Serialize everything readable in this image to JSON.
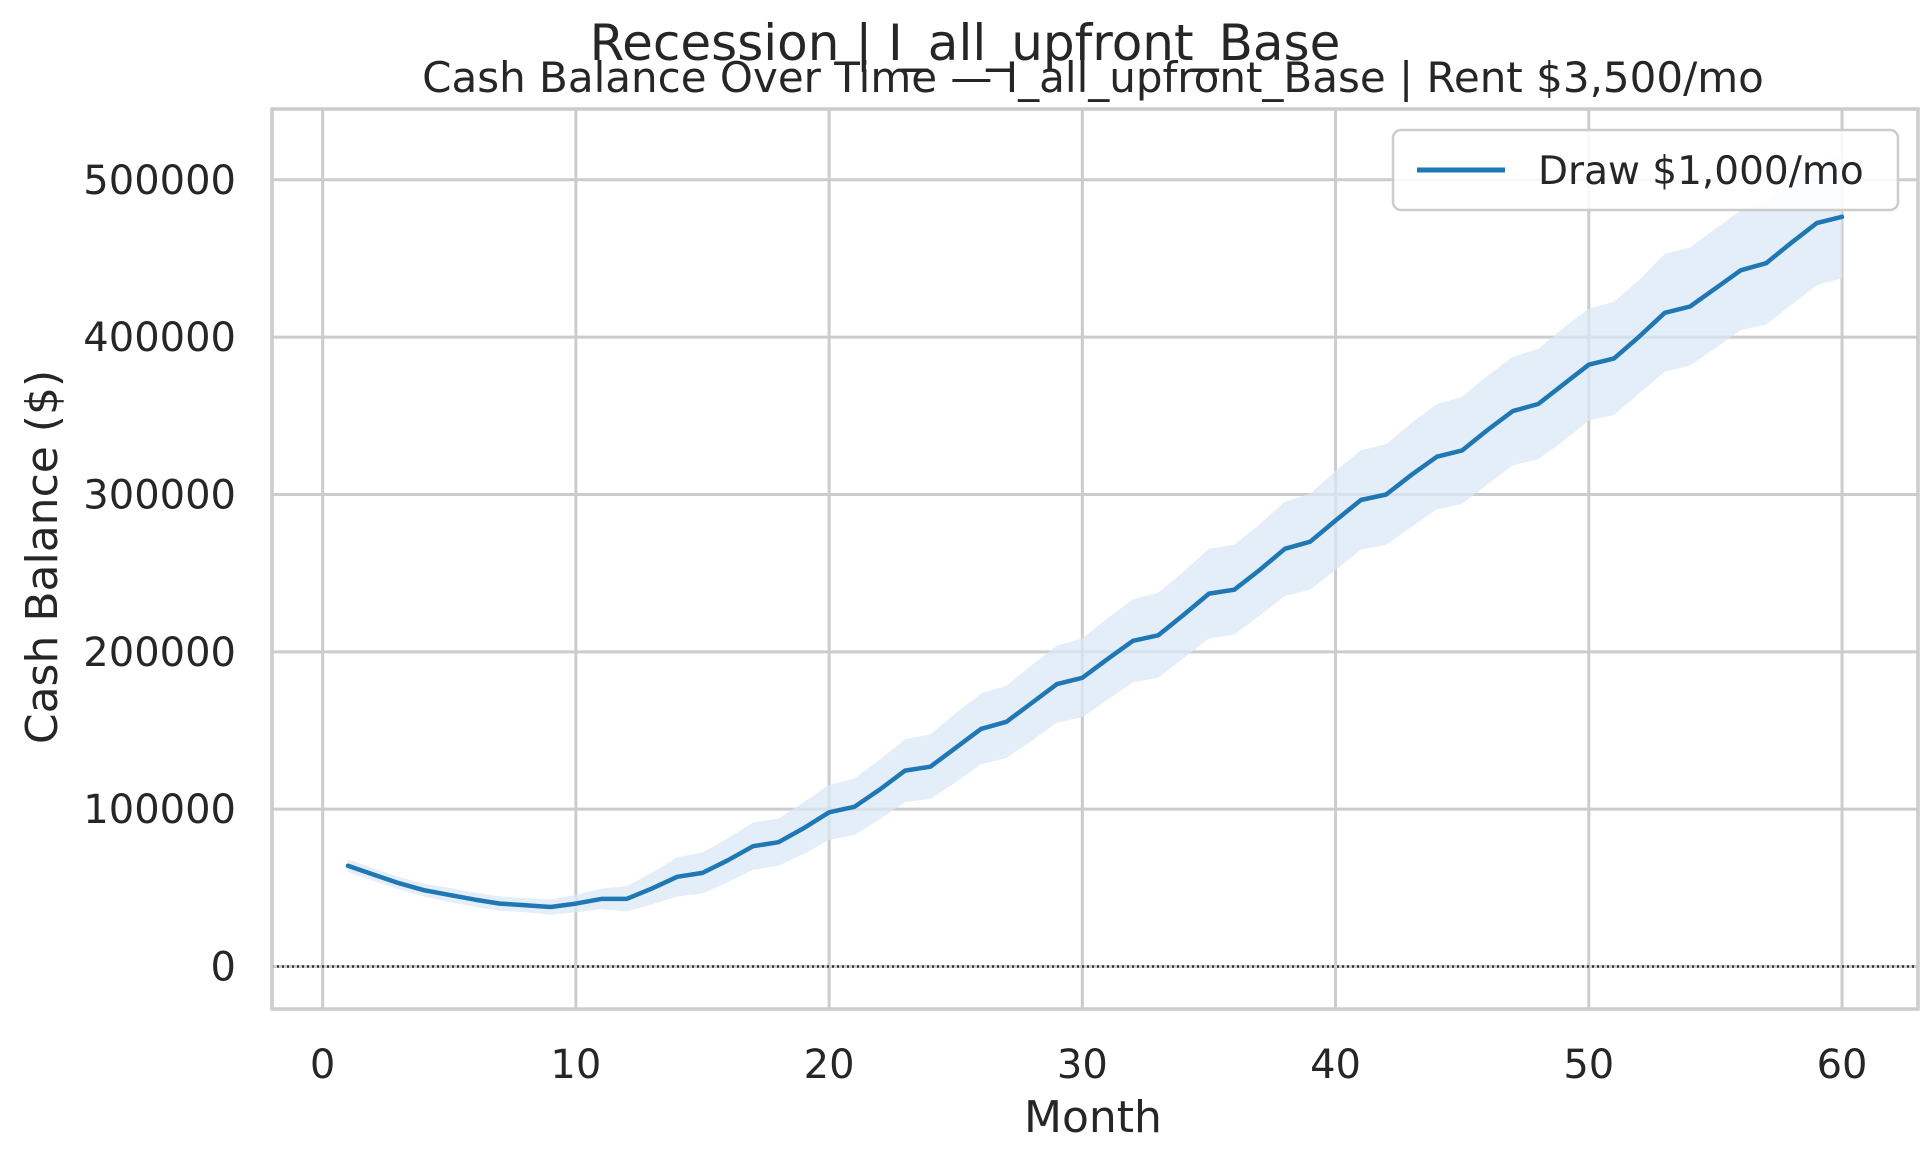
{
  "chart_data": {
    "type": "line",
    "suptitle": "Recession | I_all_upfront_Base",
    "title": "Cash Balance Over Time — I_all_upfront_Base | Rent $3,500/mo",
    "xlabel": "Month",
    "ylabel": "Cash Balance ($)",
    "xlim": [
      -2,
      63
    ],
    "ylim": [
      -27000,
      545000
    ],
    "xticks": [
      0,
      10,
      20,
      30,
      40,
      50,
      60
    ],
    "yticks": [
      0,
      100000,
      200000,
      300000,
      400000,
      500000
    ],
    "grid": true,
    "legend": "top-right",
    "reference_line": {
      "y": 0,
      "style": "dotted",
      "color": "#333333"
    },
    "series": [
      {
        "name": "Draw $1,000/mo",
        "color": "#1f77b4",
        "band_color": "#dbe8f5",
        "x": [
          1,
          2,
          3,
          4,
          5,
          6,
          7,
          8,
          9,
          10,
          11,
          12,
          13,
          14,
          15,
          16,
          17,
          18,
          19,
          20,
          21,
          22,
          23,
          24,
          25,
          26,
          27,
          28,
          29,
          30,
          31,
          32,
          33,
          34,
          35,
          36,
          37,
          38,
          39,
          40,
          41,
          42,
          43,
          44,
          45,
          46,
          47,
          48,
          49,
          50,
          51,
          52,
          53,
          54,
          55,
          56,
          57,
          58,
          59,
          60
        ],
        "values": [
          64000,
          58500,
          53000,
          48500,
          45500,
          42500,
          40000,
          39000,
          37800,
          40000,
          43000,
          43000,
          49500,
          57000,
          59500,
          67500,
          76500,
          79000,
          88000,
          98000,
          101500,
          112500,
          124500,
          127000,
          139000,
          151000,
          155500,
          167500,
          179500,
          183500,
          195500,
          207000,
          210500,
          223500,
          237000,
          239500,
          252000,
          265500,
          270000,
          283500,
          296500,
          300000,
          312500,
          324000,
          328000,
          341000,
          353000,
          357500,
          370000,
          382500,
          386500,
          400500,
          415500,
          419500,
          431000,
          442500,
          447000,
          460000,
          472500,
          476500
        ],
        "lower": [
          60000,
          54500,
          49000,
          44500,
          41000,
          38000,
          35500,
          34500,
          33000,
          34500,
          36500,
          35000,
          39500,
          44500,
          46500,
          53500,
          61500,
          64000,
          71500,
          80500,
          83500,
          93500,
          104500,
          106500,
          117000,
          128500,
          132500,
          143500,
          155000,
          158500,
          169500,
          180500,
          183500,
          196000,
          208500,
          211000,
          223000,
          235500,
          239500,
          252000,
          265000,
          268000,
          279500,
          290500,
          294000,
          306500,
          318500,
          322500,
          334000,
          347000,
          350500,
          364500,
          378000,
          382000,
          393000,
          404500,
          408000,
          420500,
          433000,
          437500
        ],
        "upper": [
          68000,
          62500,
          57000,
          52500,
          50000,
          47000,
          44500,
          43500,
          42600,
          45500,
          49500,
          51000,
          59500,
          69500,
          72500,
          81500,
          91500,
          94000,
          104500,
          115500,
          119500,
          131500,
          144500,
          147500,
          161000,
          173500,
          178500,
          191500,
          204000,
          208500,
          221500,
          233500,
          237500,
          251000,
          265500,
          268000,
          281000,
          295500,
          300500,
          315000,
          328000,
          332000,
          345500,
          357500,
          362000,
          375500,
          387500,
          392500,
          406000,
          418000,
          422500,
          436500,
          453000,
          457000,
          469000,
          480500,
          486000,
          499500,
          512000,
          515500
        ]
      }
    ]
  }
}
